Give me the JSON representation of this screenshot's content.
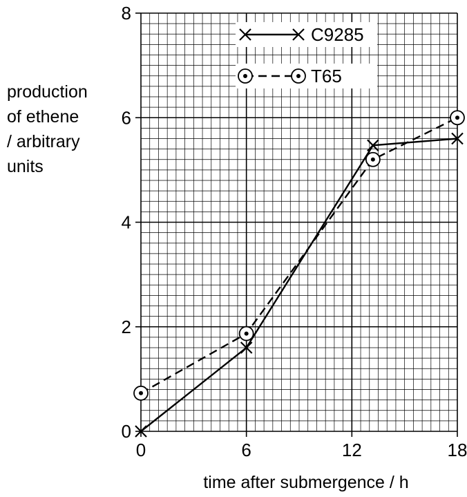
{
  "chart_data": {
    "type": "line",
    "title": "",
    "xlabel": "time after submergence / h",
    "ylabel": [
      "production",
      "of ethene",
      "/ arbitrary",
      "units"
    ],
    "xlim": [
      0,
      18
    ],
    "ylim": [
      0,
      8
    ],
    "xticks": [
      0,
      6,
      12,
      18
    ],
    "yticks": [
      0,
      2,
      4,
      6,
      8
    ],
    "grid": true,
    "legend_position": "top-center",
    "series": [
      {
        "name": "C9285",
        "line_style": "solid",
        "marker": "cross",
        "x": [
          0,
          6,
          13.2,
          18
        ],
        "y": [
          0,
          1.6,
          5.47,
          5.6
        ]
      },
      {
        "name": "T65",
        "line_style": "dashed",
        "marker": "circled-dot",
        "x": [
          0,
          6,
          13.2,
          18
        ],
        "y": [
          0.73,
          1.87,
          5.2,
          6.0
        ]
      }
    ]
  }
}
